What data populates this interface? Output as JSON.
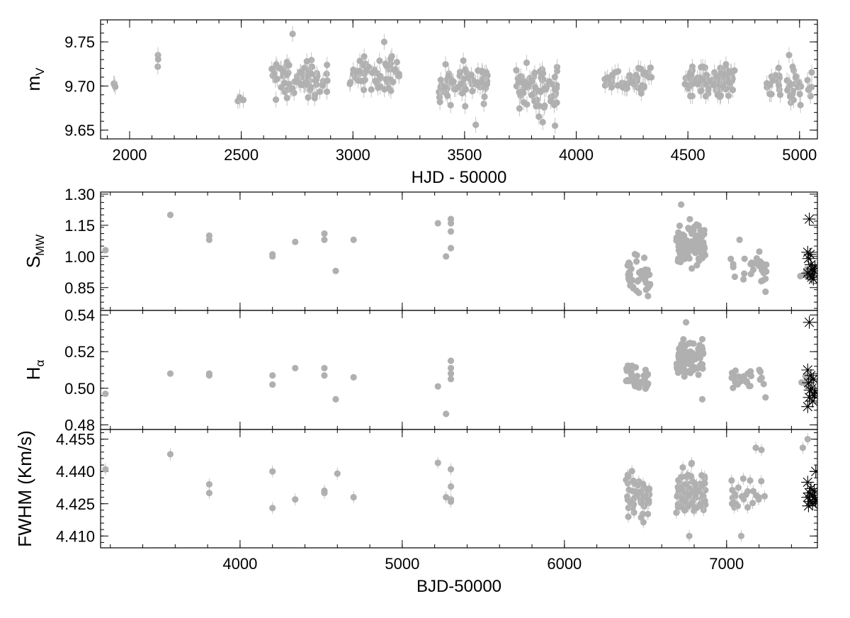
{
  "colors": {
    "points": "#b0b0b0",
    "errorbars": "#c4c4c4",
    "stars": "#000000",
    "axes": "#000000"
  },
  "chart_data": [
    {
      "type": "scatter",
      "panel": "mV",
      "ylabel": "m",
      "ylabel_sub": "V",
      "xlabel": "HJD - 50000",
      "xlim": [
        1870,
        5080
      ],
      "ylim": [
        9.64,
        9.775
      ],
      "xticks": [
        2000,
        2500,
        3000,
        3500,
        4000,
        4500,
        5000
      ],
      "xtick_labels": [
        "2000",
        "2500",
        "3000",
        "3500",
        "4000",
        "4500",
        "5000"
      ],
      "yticks": [
        9.65,
        9.7,
        9.75
      ],
      "ytick_labels": [
        "9.65",
        "9.70",
        "9.75"
      ],
      "error": 0.009,
      "seasons": [
        {
          "x0": 1900,
          "x1": 1945,
          "n": 4,
          "ymin": 9.695,
          "ymax": 9.707
        },
        {
          "x0": 2125,
          "x1": 2135,
          "n": 3,
          "ymin": 9.7,
          "ymax": 9.742
        },
        {
          "x0": 2480,
          "x1": 2510,
          "n": 4,
          "ymin": 9.677,
          "ymax": 9.692
        },
        {
          "x0": 2630,
          "x1": 2890,
          "n": 80,
          "ymin": 9.677,
          "ymax": 9.737
        },
        {
          "x0": 2985,
          "x1": 3215,
          "n": 55,
          "ymin": 9.685,
          "ymax": 9.745
        },
        {
          "x0": 3385,
          "x1": 3605,
          "n": 75,
          "ymin": 9.672,
          "ymax": 9.735
        },
        {
          "x0": 3730,
          "x1": 3920,
          "n": 70,
          "ymin": 9.66,
          "ymax": 9.735
        },
        {
          "x0": 4120,
          "x1": 4340,
          "n": 45,
          "ymin": 9.688,
          "ymax": 9.728
        },
        {
          "x0": 4480,
          "x1": 4710,
          "n": 90,
          "ymin": 9.682,
          "ymax": 9.73
        },
        {
          "x0": 4850,
          "x1": 5060,
          "n": 45,
          "ymin": 9.67,
          "ymax": 9.728
        }
      ],
      "points": [
        {
          "x": 2730,
          "y": 9.759
        },
        {
          "x": 3550,
          "y": 9.656
        },
        {
          "x": 3905,
          "y": 9.655
        },
        {
          "x": 3140,
          "y": 9.75
        },
        {
          "x": 4953,
          "y": 9.735
        },
        {
          "x": 3850,
          "y": 9.659
        }
      ]
    },
    {
      "type": "scatter",
      "panel": "SMW",
      "ylabel": "S",
      "ylabel_sub": "MW",
      "xlabel": "",
      "xlim": [
        3140,
        7560
      ],
      "ylim": [
        0.74,
        1.31
      ],
      "yticks": [
        0.85,
        1.0,
        1.15,
        1.3
      ],
      "ytick_labels": [
        "0.85",
        "1.00",
        "1.15",
        "1.30"
      ],
      "points": [
        {
          "x": 3170,
          "y": 1.03
        },
        {
          "x": 3570,
          "y": 1.2
        },
        {
          "x": 3810,
          "y": 1.1
        },
        {
          "x": 3810,
          "y": 1.08
        },
        {
          "x": 4200,
          "y": 1.01
        },
        {
          "x": 4200,
          "y": 1.0
        },
        {
          "x": 4340,
          "y": 1.07
        },
        {
          "x": 4520,
          "y": 1.11
        },
        {
          "x": 4520,
          "y": 1.08
        },
        {
          "x": 4590,
          "y": 0.93
        },
        {
          "x": 4700,
          "y": 1.08
        },
        {
          "x": 5220,
          "y": 1.16
        },
        {
          "x": 5270,
          "y": 1.0
        },
        {
          "x": 5300,
          "y": 1.18
        },
        {
          "x": 5300,
          "y": 1.16
        },
        {
          "x": 5300,
          "y": 1.12
        },
        {
          "x": 5300,
          "y": 1.04
        },
        {
          "x": 6720,
          "y": 1.25
        },
        {
          "x": 7080,
          "y": 1.08
        },
        {
          "x": 7240,
          "y": 0.83
        }
      ],
      "seasons": [
        {
          "x0": 6380,
          "x1": 6530,
          "n": 45,
          "ymin": 0.77,
          "ymax": 1.05
        },
        {
          "x0": 6690,
          "x1": 6870,
          "n": 90,
          "ymin": 0.9,
          "ymax": 1.2
        },
        {
          "x0": 7020,
          "x1": 7250,
          "n": 25,
          "ymin": 0.83,
          "ymax": 1.05
        },
        {
          "x0": 7450,
          "x1": 7530,
          "n": 10,
          "ymin": 0.88,
          "ymax": 0.95
        }
      ],
      "stars": [
        {
          "x": 7510,
          "y": 1.18
        },
        {
          "x": 7500,
          "y": 1.02
        },
        {
          "x": 7515,
          "y": 1.01
        },
        {
          "x": 7505,
          "y": 0.99
        },
        {
          "x": 7520,
          "y": 0.96
        },
        {
          "x": 7530,
          "y": 0.94
        },
        {
          "x": 7540,
          "y": 0.93
        },
        {
          "x": 7500,
          "y": 0.92
        },
        {
          "x": 7515,
          "y": 0.91
        },
        {
          "x": 7525,
          "y": 0.9
        },
        {
          "x": 7535,
          "y": 0.89
        },
        {
          "x": 7545,
          "y": 0.95
        }
      ]
    },
    {
      "type": "scatter",
      "panel": "Halpha",
      "ylabel": "H",
      "ylabel_sub": "α",
      "xlabel": "",
      "xlim": [
        3140,
        7560
      ],
      "ylim": [
        0.4775,
        0.5425
      ],
      "yticks": [
        0.48,
        0.5,
        0.52,
        0.54
      ],
      "ytick_labels": [
        "0.48",
        "0.50",
        "0.52",
        "0.54"
      ],
      "points": [
        {
          "x": 3170,
          "y": 0.497
        },
        {
          "x": 3570,
          "y": 0.508
        },
        {
          "x": 3810,
          "y": 0.508
        },
        {
          "x": 3810,
          "y": 0.507
        },
        {
          "x": 4200,
          "y": 0.507
        },
        {
          "x": 4200,
          "y": 0.502
        },
        {
          "x": 4340,
          "y": 0.511
        },
        {
          "x": 4520,
          "y": 0.511
        },
        {
          "x": 4520,
          "y": 0.507
        },
        {
          "x": 4590,
          "y": 0.494
        },
        {
          "x": 4700,
          "y": 0.506
        },
        {
          "x": 5220,
          "y": 0.501
        },
        {
          "x": 5270,
          "y": 0.486
        },
        {
          "x": 5300,
          "y": 0.515
        },
        {
          "x": 5300,
          "y": 0.511
        },
        {
          "x": 5300,
          "y": 0.508
        },
        {
          "x": 5300,
          "y": 0.505
        },
        {
          "x": 6750,
          "y": 0.536
        },
        {
          "x": 6850,
          "y": 0.494
        },
        {
          "x": 7240,
          "y": 0.495
        }
      ],
      "seasons": [
        {
          "x0": 6380,
          "x1": 6520,
          "n": 45,
          "ymin": 0.494,
          "ymax": 0.515
        },
        {
          "x0": 6690,
          "x1": 6860,
          "n": 90,
          "ymin": 0.5,
          "ymax": 0.532
        },
        {
          "x0": 7020,
          "x1": 7240,
          "n": 25,
          "ymin": 0.497,
          "ymax": 0.514
        },
        {
          "x0": 7460,
          "x1": 7530,
          "n": 8,
          "ymin": 0.5,
          "ymax": 0.508
        }
      ],
      "stars": [
        {
          "x": 7510,
          "y": 0.536
        },
        {
          "x": 7500,
          "y": 0.51
        },
        {
          "x": 7520,
          "y": 0.507
        },
        {
          "x": 7535,
          "y": 0.505
        },
        {
          "x": 7505,
          "y": 0.503
        },
        {
          "x": 7525,
          "y": 0.5
        },
        {
          "x": 7545,
          "y": 0.498
        },
        {
          "x": 7510,
          "y": 0.495
        },
        {
          "x": 7530,
          "y": 0.493
        },
        {
          "x": 7500,
          "y": 0.49
        },
        {
          "x": 7540,
          "y": 0.496
        },
        {
          "x": 7515,
          "y": 0.499
        }
      ]
    },
    {
      "type": "scatter",
      "panel": "FWHM",
      "ylabel": "FWHM (Km/s)",
      "ylabel_sub": "",
      "xlabel": "BJD-50000",
      "xlim": [
        3140,
        7560
      ],
      "ylim": [
        4.4045,
        4.4595
      ],
      "xticks": [
        4000,
        5000,
        6000,
        7000
      ],
      "xtick_labels": [
        "4000",
        "5000",
        "6000",
        "7000"
      ],
      "yticks": [
        4.41,
        4.425,
        4.44,
        4.455
      ],
      "ytick_labels": [
        "4.410",
        "4.425",
        "4.440",
        "4.455"
      ],
      "error": 0.0028,
      "points": [
        {
          "x": 3170,
          "y": 4.441
        },
        {
          "x": 3570,
          "y": 4.448
        },
        {
          "x": 3810,
          "y": 4.434
        },
        {
          "x": 3810,
          "y": 4.43
        },
        {
          "x": 4200,
          "y": 4.44
        },
        {
          "x": 4200,
          "y": 4.423
        },
        {
          "x": 4340,
          "y": 4.427
        },
        {
          "x": 4520,
          "y": 4.43
        },
        {
          "x": 4520,
          "y": 4.431
        },
        {
          "x": 4600,
          "y": 4.439
        },
        {
          "x": 4700,
          "y": 4.428
        },
        {
          "x": 5220,
          "y": 4.444
        },
        {
          "x": 5270,
          "y": 4.428
        },
        {
          "x": 5300,
          "y": 4.441
        },
        {
          "x": 5300,
          "y": 4.433
        },
        {
          "x": 5300,
          "y": 4.427
        },
        {
          "x": 5300,
          "y": 4.426
        },
        {
          "x": 6770,
          "y": 4.41
        },
        {
          "x": 7090,
          "y": 4.41
        },
        {
          "x": 7180,
          "y": 4.451
        },
        {
          "x": 7215,
          "y": 4.45
        },
        {
          "x": 7470,
          "y": 4.451
        },
        {
          "x": 7500,
          "y": 4.455
        }
      ],
      "seasons": [
        {
          "x0": 6380,
          "x1": 6530,
          "n": 45,
          "ymin": 4.411,
          "ymax": 4.445
        },
        {
          "x0": 6690,
          "x1": 6870,
          "n": 90,
          "ymin": 4.414,
          "ymax": 4.446
        },
        {
          "x0": 7020,
          "x1": 7240,
          "n": 25,
          "ymin": 4.417,
          "ymax": 4.443
        }
      ],
      "stars": [
        {
          "x": 7550,
          "y": 4.44
        },
        {
          "x": 7500,
          "y": 4.435
        },
        {
          "x": 7520,
          "y": 4.432
        },
        {
          "x": 7540,
          "y": 4.431
        },
        {
          "x": 7510,
          "y": 4.43
        },
        {
          "x": 7530,
          "y": 4.429
        },
        {
          "x": 7500,
          "y": 4.428
        },
        {
          "x": 7545,
          "y": 4.427
        },
        {
          "x": 7515,
          "y": 4.426
        },
        {
          "x": 7530,
          "y": 4.425
        },
        {
          "x": 7505,
          "y": 4.424
        },
        {
          "x": 7550,
          "y": 4.426
        }
      ]
    }
  ]
}
